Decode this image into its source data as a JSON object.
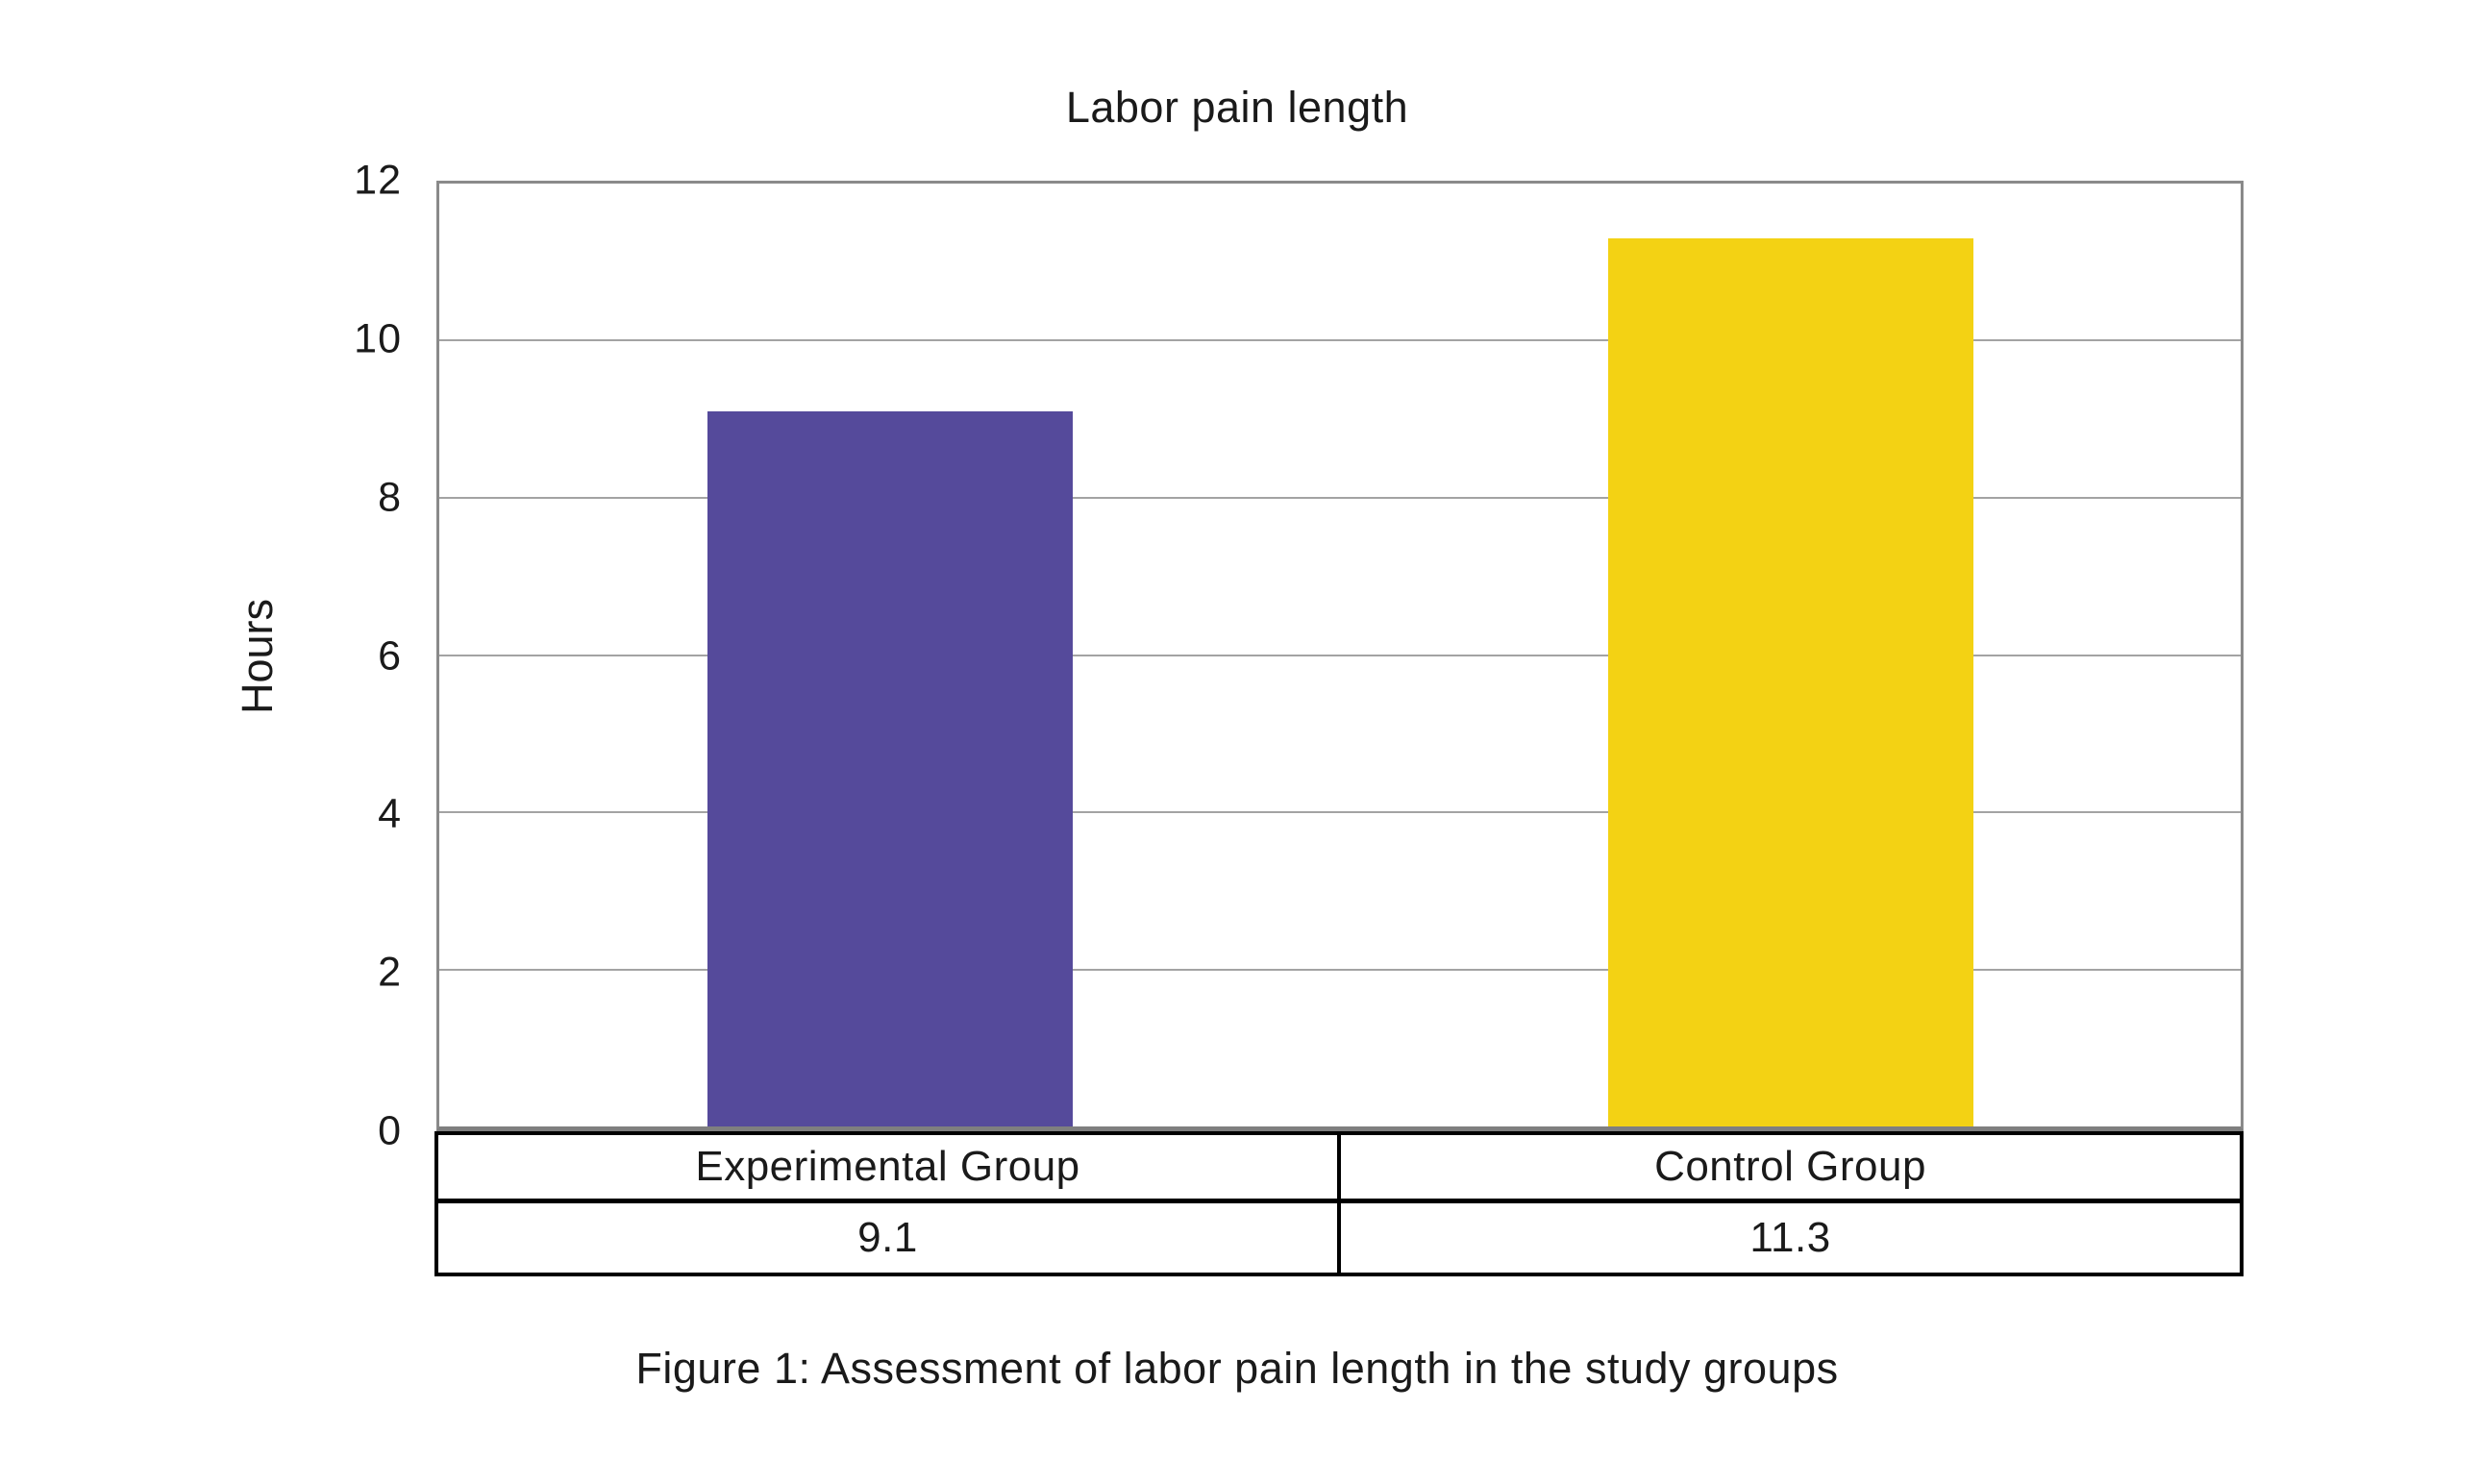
{
  "chart_data": {
    "type": "bar",
    "title": "Labor pain length",
    "ylabel": "Hours",
    "xlabel": "",
    "categories": [
      "Experimental Group",
      "Control Group"
    ],
    "values": [
      9.1,
      11.3
    ],
    "value_labels": [
      "9.1",
      "11.3"
    ],
    "bar_colors": [
      "#554A9B",
      "#F3D214"
    ],
    "ylim": [
      0,
      12
    ],
    "yticks": [
      12,
      10,
      8,
      6,
      4,
      2,
      0
    ],
    "grid": "horizontal",
    "legend": "none",
    "data_table_below_axis": true
  },
  "caption": "Figure 1: Assessment of labor pain length in the study groups",
  "colors": {
    "background": "#FFFFFF",
    "plot_border": "#8A8A8A",
    "gridline": "#A3A3A3",
    "axis_line": "#7F7F7F",
    "table_border": "#000000",
    "text": "#1A1A1A"
  }
}
